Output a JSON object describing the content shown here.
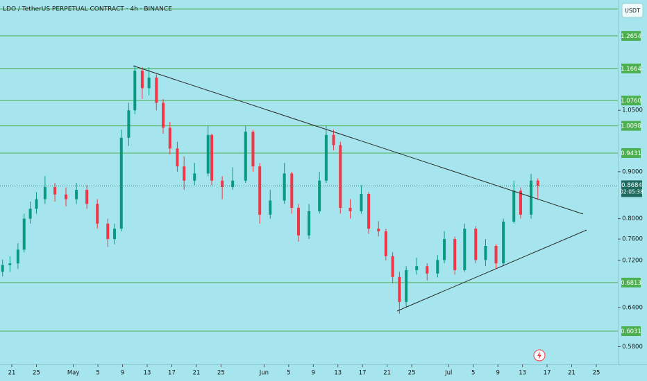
{
  "chart_data": {
    "type": "candlestick",
    "title": "LDO / TetherUS PERPETUAL CONTRACT · 4h · BINANCE",
    "currency": "USDT",
    "log_scale": true,
    "up_color": "#089981",
    "down_color": "#f23645",
    "level_color": "#4caf50",
    "price_color": "#1f6b5f",
    "xlim": [
      -1.92,
      98.5
    ],
    "ylim": [
      0.5558,
      1.385
    ],
    "xticks": [
      {
        "value": 0,
        "label": "21"
      },
      {
        "value": 4,
        "label": "25"
      },
      {
        "value": 10,
        "label": "May"
      },
      {
        "value": 14,
        "label": "5"
      },
      {
        "value": 18,
        "label": "9"
      },
      {
        "value": 22,
        "label": "13"
      },
      {
        "value": 26,
        "label": "17"
      },
      {
        "value": 30,
        "label": "21"
      },
      {
        "value": 34,
        "label": "25"
      },
      {
        "value": 41,
        "label": "Jun"
      },
      {
        "value": 45,
        "label": "5"
      },
      {
        "value": 49,
        "label": "9"
      },
      {
        "value": 53,
        "label": "13"
      },
      {
        "value": 57,
        "label": "17"
      },
      {
        "value": 61,
        "label": "21"
      },
      {
        "value": 65,
        "label": "25"
      },
      {
        "value": 71,
        "label": "Jul"
      },
      {
        "value": 75,
        "label": "5"
      },
      {
        "value": 79,
        "label": "9"
      },
      {
        "value": 83,
        "label": "13"
      },
      {
        "value": 87,
        "label": "17"
      },
      {
        "value": 91,
        "label": "21"
      },
      {
        "value": 95,
        "label": "25"
      }
    ],
    "yticks": [
      {
        "value": 1.05,
        "label": "1.0500"
      },
      {
        "value": 0.9,
        "label": "0.9000"
      },
      {
        "value": 0.8,
        "label": "0.8000"
      },
      {
        "value": 0.76,
        "label": "0.7600"
      },
      {
        "value": 0.72,
        "label": "0.7200"
      },
      {
        "value": 0.64,
        "label": "0.6400"
      },
      {
        "value": 0.58,
        "label": "0.5800"
      }
    ],
    "levels": [
      1.2654,
      1.1664,
      {
        "value": 1.076,
        "label": "1.0760"
      },
      1.0098,
      0.9431,
      0.6813,
      0.6031
    ],
    "last_price": 0.8684,
    "countdown": "02:05:38",
    "x": [
      -1.5,
      -0.3,
      1,
      2,
      3,
      4,
      5.4,
      7,
      8.8,
      10.5,
      12.2,
      13.9,
      15.6,
      16.7,
      17.8,
      19,
      20,
      21.2,
      22.3,
      23.5,
      24.6,
      25.7,
      26.9,
      28,
      29.7,
      31.9,
      32.5,
      34.2,
      35.9,
      38,
      39.2,
      40.3,
      42,
      44.3,
      45.5,
      46.6,
      48.3,
      50,
      51.1,
      52.3,
      53.4,
      55,
      56.8,
      58,
      59.6,
      60.8,
      61.9,
      63,
      64.1,
      65.8,
      67.5,
      69.2,
      70.3,
      72,
      73.6,
      75.4,
      77,
      78.7,
      79.9,
      81.6,
      82.7,
      84.4,
      85.5
    ],
    "open": [
      0.7,
      0.712,
      0.715,
      0.74,
      0.8,
      0.82,
      0.84,
      0.866,
      0.85,
      0.84,
      0.86,
      0.83,
      0.79,
      0.76,
      0.78,
      0.98,
      1.05,
      1.16,
      1.11,
      1.14,
      1.07,
      1.005,
      0.954,
      0.912,
      0.88,
      0.896,
      0.987,
      0.88,
      0.866,
      0.88,
      0.995,
      0.912,
      0.808,
      0.837,
      0.896,
      0.822,
      0.767,
      0.815,
      0.88,
      0.987,
      0.962,
      0.822,
      0.815,
      0.851,
      0.78,
      0.775,
      0.728,
      0.691,
      0.649,
      0.703,
      0.71,
      0.697,
      0.721,
      0.76,
      0.703,
      0.78,
      0.721,
      0.747,
      0.715,
      0.794,
      0.858,
      0.808,
      0.88
    ],
    "high": [
      0.722,
      0.728,
      0.752,
      0.81,
      0.835,
      0.855,
      0.89,
      0.875,
      0.865,
      0.875,
      0.87,
      0.84,
      0.8,
      0.79,
      1.0,
      1.07,
      1.175,
      1.17,
      1.17,
      1.15,
      1.08,
      1.02,
      0.97,
      0.935,
      0.92,
      1.01,
      0.99,
      0.89,
      0.91,
      1.01,
      1.0,
      0.92,
      0.86,
      0.92,
      0.9,
      0.83,
      0.83,
      0.9,
      1.01,
      1.0,
      0.97,
      0.84,
      0.87,
      0.855,
      0.795,
      0.78,
      0.735,
      0.7,
      0.71,
      0.725,
      0.715,
      0.73,
      0.775,
      0.765,
      0.79,
      0.785,
      0.76,
      0.75,
      0.8,
      0.88,
      0.865,
      0.895,
      0.885
    ],
    "low": [
      0.692,
      0.7,
      0.705,
      0.735,
      0.79,
      0.81,
      0.83,
      0.835,
      0.825,
      0.83,
      0.82,
      0.78,
      0.745,
      0.75,
      0.775,
      0.96,
      1.04,
      1.08,
      1.09,
      1.05,
      0.99,
      0.94,
      0.9,
      0.86,
      0.87,
      0.89,
      0.87,
      0.84,
      0.86,
      0.875,
      0.9,
      0.79,
      0.8,
      0.83,
      0.81,
      0.755,
      0.76,
      0.81,
      0.875,
      0.95,
      0.81,
      0.8,
      0.81,
      0.77,
      0.765,
      0.72,
      0.68,
      0.63,
      0.64,
      0.695,
      0.685,
      0.69,
      0.715,
      0.695,
      0.7,
      0.715,
      0.71,
      0.705,
      0.71,
      0.79,
      0.8,
      0.8,
      0.84
    ],
    "close": [
      0.712,
      0.715,
      0.74,
      0.8,
      0.82,
      0.84,
      0.866,
      0.85,
      0.84,
      0.86,
      0.83,
      0.79,
      0.76,
      0.78,
      0.98,
      1.05,
      1.16,
      1.11,
      1.14,
      1.07,
      1.005,
      0.954,
      0.912,
      0.88,
      0.896,
      0.987,
      0.88,
      0.866,
      0.88,
      0.995,
      0.912,
      0.808,
      0.837,
      0.896,
      0.822,
      0.767,
      0.815,
      0.88,
      0.987,
      0.962,
      0.822,
      0.815,
      0.851,
      0.78,
      0.775,
      0.728,
      0.691,
      0.649,
      0.703,
      0.71,
      0.697,
      0.721,
      0.76,
      0.703,
      0.78,
      0.721,
      0.747,
      0.715,
      0.794,
      0.858,
      0.808,
      0.88,
      0.8684
    ]
  }
}
